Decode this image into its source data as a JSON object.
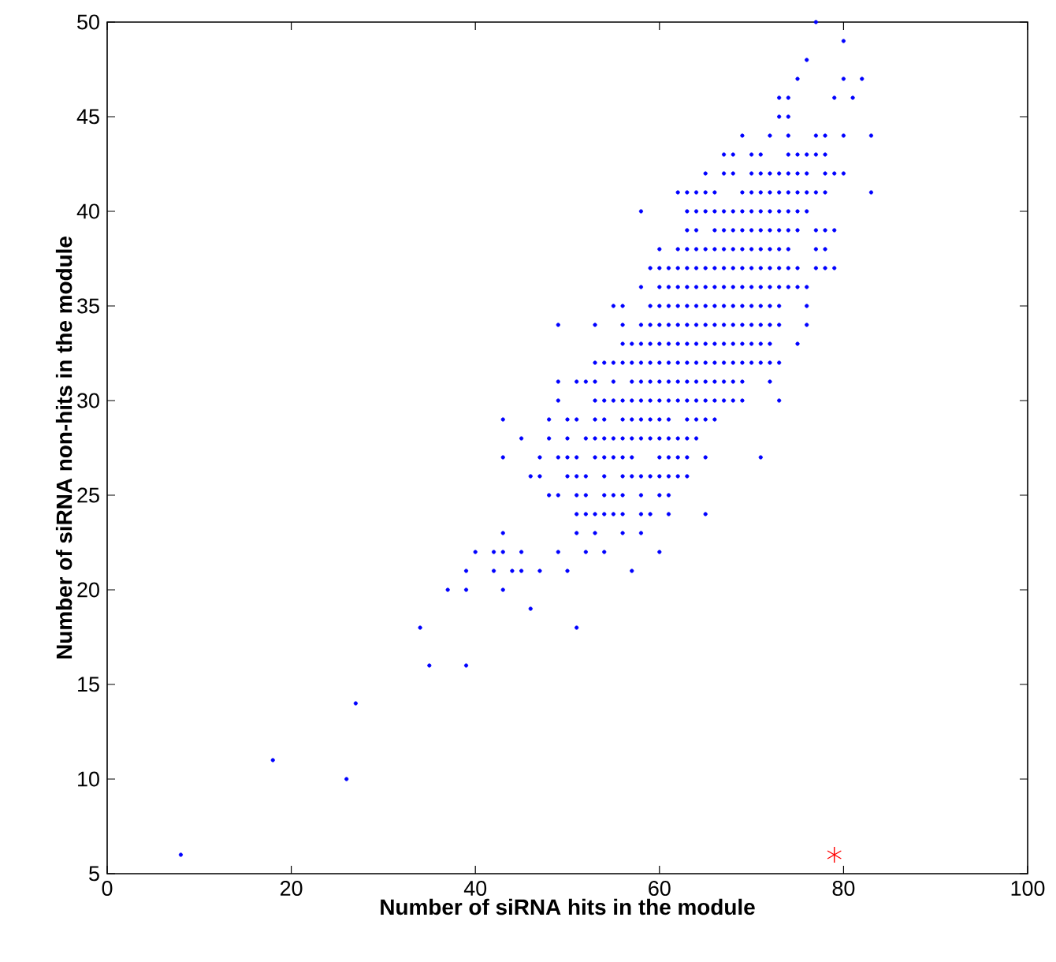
{
  "chart_data": {
    "type": "scatter",
    "xlabel": "Number of siRNA hits in the module",
    "ylabel": "Number of siRNA non-hits in the module",
    "xlim": [
      0,
      100
    ],
    "ylim": [
      5,
      50
    ],
    "xticks": [
      0,
      20,
      40,
      60,
      80,
      100
    ],
    "yticks": [
      5,
      10,
      15,
      20,
      25,
      30,
      35,
      40,
      45,
      50
    ],
    "grid": false,
    "series": [
      {
        "color": "#0000ff",
        "marker": "circle",
        "x": [
          77
        ],
        "values": [
          50
        ]
      },
      {
        "color": "#0000ff",
        "marker": "circle",
        "x": [
          80
        ],
        "values": [
          49
        ]
      },
      {
        "color": "#0000ff",
        "marker": "circle",
        "x": [
          76
        ],
        "values": [
          48
        ]
      },
      {
        "color": "#0000ff",
        "marker": "circle",
        "x": [
          75,
          80,
          82
        ],
        "values": [
          47,
          47,
          47
        ]
      },
      {
        "color": "#0000ff",
        "marker": "circle",
        "x": [
          73,
          74,
          79,
          81
        ],
        "values": [
          46,
          46,
          46,
          46
        ]
      },
      {
        "color": "#0000ff",
        "marker": "circle",
        "x": [
          73,
          74
        ],
        "values": [
          45,
          45
        ]
      },
      {
        "color": "#0000ff",
        "marker": "circle",
        "x": [
          69,
          72,
          74,
          77,
          78,
          80,
          83
        ],
        "values": [
          44,
          44,
          44,
          44,
          44,
          44,
          44
        ]
      },
      {
        "color": "#0000ff",
        "marker": "circle",
        "x": [
          67,
          68,
          70,
          71,
          74,
          75,
          76,
          77,
          78
        ],
        "values": [
          43,
          43,
          43,
          43,
          43,
          43,
          43,
          43,
          43
        ]
      },
      {
        "color": "#0000ff",
        "marker": "circle",
        "x": [
          65,
          67,
          68,
          70,
          71,
          72,
          73,
          74,
          75,
          76,
          78,
          79,
          80
        ],
        "values": [
          42,
          42,
          42,
          42,
          42,
          42,
          42,
          42,
          42,
          42,
          42,
          42,
          42
        ]
      },
      {
        "color": "#0000ff",
        "marker": "circle",
        "x": [
          62,
          63,
          64,
          65,
          66,
          69,
          70,
          71,
          72,
          73,
          74,
          75,
          76,
          77,
          78,
          83
        ],
        "values": [
          41,
          41,
          41,
          41,
          41,
          41,
          41,
          41,
          41,
          41,
          41,
          41,
          41,
          41,
          41,
          41
        ]
      },
      {
        "color": "#0000ff",
        "marker": "circle",
        "x": [
          58,
          63,
          64,
          65,
          66,
          67,
          68,
          69,
          70,
          71,
          72,
          73,
          74,
          75,
          76
        ],
        "values": [
          40,
          40,
          40,
          40,
          40,
          40,
          40,
          40,
          40,
          40,
          40,
          40,
          40,
          40,
          40
        ]
      },
      {
        "color": "#0000ff",
        "marker": "circle",
        "x": [
          63,
          64,
          66,
          67,
          68,
          69,
          70,
          71,
          72,
          73,
          74,
          75,
          77,
          78,
          79
        ],
        "values": [
          39,
          39,
          39,
          39,
          39,
          39,
          39,
          39,
          39,
          39,
          39,
          39,
          39,
          39,
          39
        ]
      },
      {
        "color": "#0000ff",
        "marker": "circle",
        "x": [
          60,
          62,
          63,
          64,
          65,
          66,
          67,
          68,
          69,
          70,
          71,
          72,
          73,
          74,
          77,
          78
        ],
        "values": [
          38,
          38,
          38,
          38,
          38,
          38,
          38,
          38,
          38,
          38,
          38,
          38,
          38,
          38,
          38,
          38
        ]
      },
      {
        "color": "#0000ff",
        "marker": "circle",
        "x": [
          59,
          60,
          61,
          62,
          63,
          64,
          65,
          66,
          67,
          68,
          69,
          70,
          71,
          72,
          73,
          74,
          75,
          77,
          78,
          79
        ],
        "values": [
          37,
          37,
          37,
          37,
          37,
          37,
          37,
          37,
          37,
          37,
          37,
          37,
          37,
          37,
          37,
          37,
          37,
          37,
          37,
          37
        ]
      },
      {
        "color": "#0000ff",
        "marker": "circle",
        "x": [
          58,
          60,
          61,
          62,
          63,
          64,
          65,
          66,
          67,
          68,
          69,
          70,
          71,
          72,
          73,
          74,
          75,
          76
        ],
        "values": [
          36,
          36,
          36,
          36,
          36,
          36,
          36,
          36,
          36,
          36,
          36,
          36,
          36,
          36,
          36,
          36,
          36,
          36
        ]
      },
      {
        "color": "#0000ff",
        "marker": "circle",
        "x": [
          55,
          56,
          59,
          60,
          61,
          62,
          63,
          64,
          65,
          66,
          67,
          68,
          69,
          70,
          71,
          72,
          73,
          76
        ],
        "values": [
          35,
          35,
          35,
          35,
          35,
          35,
          35,
          35,
          35,
          35,
          35,
          35,
          35,
          35,
          35,
          35,
          35,
          35
        ]
      },
      {
        "color": "#0000ff",
        "marker": "circle",
        "x": [
          49,
          53,
          56,
          58,
          59,
          60,
          61,
          62,
          63,
          64,
          65,
          66,
          67,
          68,
          69,
          70,
          71,
          72,
          73,
          76
        ],
        "values": [
          34,
          34,
          34,
          34,
          34,
          34,
          34,
          34,
          34,
          34,
          34,
          34,
          34,
          34,
          34,
          34,
          34,
          34,
          34,
          34
        ]
      },
      {
        "color": "#0000ff",
        "marker": "circle",
        "x": [
          56,
          57,
          58,
          59,
          60,
          61,
          62,
          63,
          64,
          65,
          66,
          67,
          68,
          69,
          70,
          71,
          72,
          75
        ],
        "values": [
          33,
          33,
          33,
          33,
          33,
          33,
          33,
          33,
          33,
          33,
          33,
          33,
          33,
          33,
          33,
          33,
          33,
          33
        ]
      },
      {
        "color": "#0000ff",
        "marker": "circle",
        "x": [
          53,
          54,
          55,
          56,
          57,
          58,
          59,
          60,
          61,
          62,
          63,
          64,
          65,
          66,
          67,
          68,
          69,
          70,
          71,
          72,
          73
        ],
        "values": [
          32,
          32,
          32,
          32,
          32,
          32,
          32,
          32,
          32,
          32,
          32,
          32,
          32,
          32,
          32,
          32,
          32,
          32,
          32,
          32,
          32
        ]
      },
      {
        "color": "#0000ff",
        "marker": "circle",
        "x": [
          49,
          51,
          52,
          53,
          55,
          57,
          58,
          59,
          60,
          61,
          62,
          63,
          64,
          65,
          66,
          67,
          68,
          69,
          72
        ],
        "values": [
          31,
          31,
          31,
          31,
          31,
          31,
          31,
          31,
          31,
          31,
          31,
          31,
          31,
          31,
          31,
          31,
          31,
          31,
          31
        ]
      },
      {
        "color": "#0000ff",
        "marker": "circle",
        "x": [
          49,
          53,
          54,
          55,
          56,
          57,
          58,
          59,
          60,
          61,
          62,
          63,
          64,
          65,
          66,
          67,
          68,
          69,
          73
        ],
        "values": [
          30,
          30,
          30,
          30,
          30,
          30,
          30,
          30,
          30,
          30,
          30,
          30,
          30,
          30,
          30,
          30,
          30,
          30,
          30
        ]
      },
      {
        "color": "#0000ff",
        "marker": "circle",
        "x": [
          43,
          48,
          50,
          51,
          53,
          54,
          56,
          57,
          58,
          59,
          60,
          61,
          63,
          64,
          65,
          66
        ],
        "values": [
          29,
          29,
          29,
          29,
          29,
          29,
          29,
          29,
          29,
          29,
          29,
          29,
          29,
          29,
          29,
          29
        ]
      },
      {
        "color": "#0000ff",
        "marker": "circle",
        "x": [
          45,
          48,
          50,
          52,
          53,
          54,
          55,
          56,
          57,
          58,
          59,
          60,
          61,
          62,
          63,
          64
        ],
        "values": [
          28,
          28,
          28,
          28,
          28,
          28,
          28,
          28,
          28,
          28,
          28,
          28,
          28,
          28,
          28,
          28
        ]
      },
      {
        "color": "#0000ff",
        "marker": "circle",
        "x": [
          43,
          47,
          49,
          50,
          51,
          53,
          54,
          55,
          56,
          57,
          60,
          61,
          62,
          63,
          65,
          71
        ],
        "values": [
          27,
          27,
          27,
          27,
          27,
          27,
          27,
          27,
          27,
          27,
          27,
          27,
          27,
          27,
          27,
          27
        ]
      },
      {
        "color": "#0000ff",
        "marker": "circle",
        "x": [
          46,
          47,
          50,
          51,
          52,
          54,
          56,
          57,
          58,
          59,
          60,
          61,
          62,
          63
        ],
        "values": [
          26,
          26,
          26,
          26,
          26,
          26,
          26,
          26,
          26,
          26,
          26,
          26,
          26,
          26
        ]
      },
      {
        "color": "#0000ff",
        "marker": "circle",
        "x": [
          48,
          49,
          51,
          52,
          54,
          55,
          56,
          58,
          60,
          61
        ],
        "values": [
          25,
          25,
          25,
          25,
          25,
          25,
          25,
          25,
          25,
          25
        ]
      },
      {
        "color": "#0000ff",
        "marker": "circle",
        "x": [
          51,
          52,
          53,
          54,
          55,
          56,
          58,
          59,
          61,
          65
        ],
        "values": [
          24,
          24,
          24,
          24,
          24,
          24,
          24,
          24,
          24,
          24
        ]
      },
      {
        "color": "#0000ff",
        "marker": "circle",
        "x": [
          43,
          51,
          53,
          56,
          58
        ],
        "values": [
          23,
          23,
          23,
          23,
          23
        ]
      },
      {
        "color": "#0000ff",
        "marker": "circle",
        "x": [
          40,
          42,
          43,
          45,
          49,
          52,
          54,
          60
        ],
        "values": [
          22,
          22,
          22,
          22,
          22,
          22,
          22,
          22
        ]
      },
      {
        "color": "#0000ff",
        "marker": "circle",
        "x": [
          39,
          42,
          44,
          45,
          47,
          50,
          57
        ],
        "values": [
          21,
          21,
          21,
          21,
          21,
          21,
          21
        ]
      },
      {
        "color": "#0000ff",
        "marker": "circle",
        "x": [
          37,
          39,
          43
        ],
        "values": [
          20,
          20,
          20
        ]
      },
      {
        "color": "#0000ff",
        "marker": "circle",
        "x": [
          46,
          34,
          51,
          35,
          39,
          27,
          18,
          26,
          8
        ],
        "values": [
          19,
          18,
          18,
          16,
          16,
          14,
          11,
          10,
          6
        ]
      },
      {
        "color": "#ff0000",
        "marker": "cross",
        "x": [
          79
        ],
        "values": [
          6
        ]
      }
    ]
  }
}
